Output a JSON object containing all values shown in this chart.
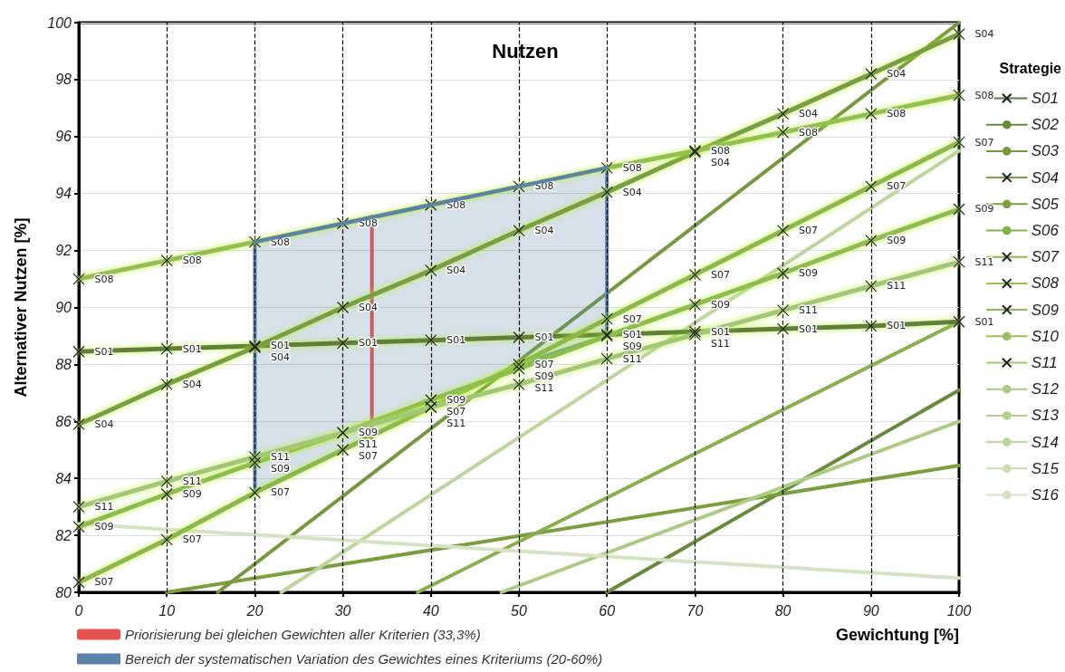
{
  "chart_data": {
    "type": "line",
    "title": "Nutzen",
    "xlabel": "Gewichtung [%]",
    "ylabel": "Alternativer Nutzen [%]",
    "legend_title": "Strategie",
    "x": [
      0,
      10,
      20,
      30,
      40,
      50,
      60,
      70,
      80,
      90,
      100
    ],
    "xlim": [
      0,
      100
    ],
    "xticks": [
      0,
      10,
      20,
      30,
      40,
      50,
      60,
      70,
      80,
      90,
      100
    ],
    "ylim": [
      80,
      100
    ],
    "yticks": [
      80,
      82,
      84,
      86,
      88,
      90,
      92,
      94,
      96,
      98,
      100
    ],
    "grid": "y",
    "legend": "right",
    "line_style": "solid",
    "series": [
      {
        "name": "S01",
        "color": "#5f7f3a",
        "marker": "cross",
        "values": [
          88.45,
          88.55,
          88.65,
          88.75,
          88.85,
          88.95,
          89.05,
          89.15,
          89.25,
          89.35,
          89.5
        ],
        "value_labels": [
          "S01",
          "S01",
          "S01",
          "S01",
          "S01",
          "S01",
          "S01",
          "S01",
          "S01",
          "S01",
          "S01"
        ]
      },
      {
        "name": "S02",
        "color": "#688a3d",
        "marker": "none",
        "x": [
          60,
          100
        ],
        "values": [
          80,
          87.1
        ]
      },
      {
        "name": "S03",
        "color": "#74993f",
        "marker": "none",
        "x": [
          15.8,
          100
        ],
        "values": [
          80,
          100
        ]
      },
      {
        "name": "S04",
        "color": "#78a042",
        "marker": "cross",
        "values": [
          85.9,
          87.3,
          88.6,
          90.0,
          91.3,
          92.7,
          94.05,
          95.45,
          96.8,
          98.2,
          99.6
        ],
        "value_labels": [
          "S04",
          "S04",
          "S04",
          "S04",
          "S04",
          "S04",
          "S04",
          "S04",
          "S04",
          "S04",
          "S04"
        ]
      },
      {
        "name": "S05",
        "color": "#7a9f3c",
        "marker": "none",
        "x": [
          10,
          100
        ],
        "values": [
          80,
          84.45
        ]
      },
      {
        "name": "S06",
        "color": "#86b04c",
        "marker": "none",
        "x": [
          38.5,
          100
        ],
        "values": [
          80,
          89.5
        ]
      },
      {
        "name": "S07",
        "color": "#8cb84e",
        "marker": "cross",
        "values": [
          80.35,
          81.85,
          83.5,
          85.0,
          86.5,
          88.0,
          89.6,
          91.15,
          92.7,
          94.25,
          95.8
        ],
        "value_labels": [
          "S07",
          "S07",
          "S07",
          "S07",
          "S07",
          "S07",
          "S07",
          "S07",
          "S07",
          "S07",
          "S07"
        ]
      },
      {
        "name": "S08",
        "color": "#94c050",
        "marker": "cross",
        "values": [
          91.0,
          91.65,
          92.3,
          92.95,
          93.6,
          94.25,
          94.9,
          95.5,
          96.15,
          96.8,
          97.45
        ],
        "value_labels": [
          "S08",
          "S08",
          "S08",
          "S08",
          "S08",
          "S08",
          "S08",
          "S08",
          "S08",
          "S08",
          "S08"
        ]
      },
      {
        "name": "S09",
        "color": "#8ebc4f",
        "marker": "cross",
        "values": [
          82.3,
          83.45,
          84.55,
          85.6,
          86.75,
          87.85,
          89.0,
          90.1,
          91.2,
          92.35,
          93.45
        ],
        "value_labels": [
          "S09",
          "S09",
          "S09",
          "S09",
          "S09",
          "S09",
          "S09",
          "S09",
          "S09",
          "S09",
          "S09"
        ]
      },
      {
        "name": "S10",
        "color": "#99c35f",
        "marker": "none",
        "values": [
          null,
          null,
          null,
          null,
          null,
          null,
          null,
          null,
          null,
          null,
          null
        ]
      },
      {
        "name": "S11",
        "color": "#a3c679",
        "marker": "cross",
        "values": [
          83.0,
          83.9,
          84.75,
          85.6,
          86.5,
          87.3,
          88.2,
          89.05,
          89.9,
          90.75,
          91.6
        ],
        "value_labels": [
          "S11",
          "S11",
          "S11",
          "S11",
          "S11",
          "S11",
          "S11",
          "S11",
          "S11",
          "S11",
          "S11"
        ]
      },
      {
        "name": "S12",
        "color": "#abcc82",
        "marker": "none",
        "x": [
          48,
          100
        ],
        "values": [
          80,
          86
        ]
      },
      {
        "name": "S13",
        "color": "#b4d08f",
        "marker": "none",
        "values": [
          null,
          null,
          null,
          null,
          null,
          null,
          null,
          null,
          null,
          null,
          null
        ]
      },
      {
        "name": "S14",
        "color": "#bdd69e",
        "marker": "none",
        "x": [
          23,
          100
        ],
        "values": [
          80,
          95.5
        ]
      },
      {
        "name": "S15",
        "color": "#c9deb0",
        "marker": "none",
        "values": [
          null,
          null,
          null,
          null,
          null,
          null,
          null,
          null,
          null,
          null,
          null
        ]
      },
      {
        "name": "S16",
        "color": "#d5e3c2",
        "marker": "none",
        "x": [
          0,
          100
        ],
        "values": [
          82.4,
          80.5
        ]
      },
      {
        "name": "Priorisierung bei gleichen Gewichten aller Kriterien (33,3%)",
        "color": "#e8534f",
        "x": [
          33.3,
          33.3
        ],
        "values": [
          85.4,
          93.2
        ]
      },
      {
        "name": "Bereich der systematischen Variation des Gewichtes eines Kriteriums (20-60%)",
        "type": "line",
        "color": "#5b82a8",
        "x": [
          20,
          30,
          40,
          50,
          60
        ],
        "values": [
          92.3,
          92.95,
          93.6,
          94.25,
          94.9
        ],
        "lower": [
          83.5,
          85.0,
          86.5,
          88.0,
          89.0
        ],
        "upper": [
          92.3,
          92.95,
          93.6,
          94.25,
          94.9
        ]
      }
    ],
    "ref_lines": [
      {
        "axis": "x",
        "value": 10,
        "line_style": "dashed",
        "color": "#000000"
      },
      {
        "axis": "x",
        "value": 20,
        "line_style": "dashed",
        "color": "#000000"
      },
      {
        "axis": "x",
        "value": 30,
        "line_style": "dashed",
        "color": "#000000"
      },
      {
        "axis": "x",
        "value": 40,
        "line_style": "dashed",
        "color": "#000000"
      },
      {
        "axis": "x",
        "value": 50,
        "line_style": "dashed",
        "color": "#000000"
      },
      {
        "axis": "x",
        "value": 60,
        "line_style": "dashed",
        "color": "#000000"
      },
      {
        "axis": "x",
        "value": 70,
        "line_style": "dashed",
        "color": "#000000"
      },
      {
        "axis": "x",
        "value": 80,
        "line_style": "dashed",
        "color": "#000000"
      },
      {
        "axis": "x",
        "value": 90,
        "line_style": "dashed",
        "color": "#000000"
      }
    ]
  }
}
